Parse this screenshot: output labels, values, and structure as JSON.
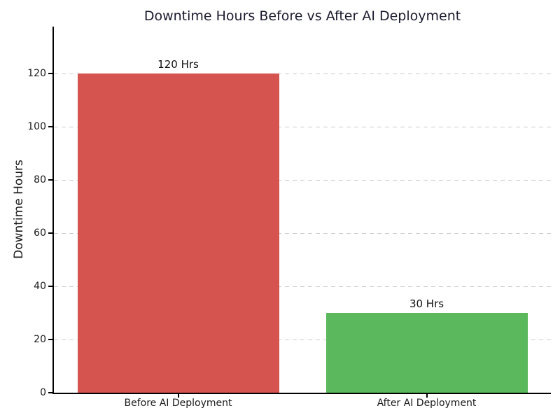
{
  "chart_data": {
    "type": "bar",
    "title": "Downtime Hours Before vs After AI Deployment",
    "xlabel": "",
    "ylabel": "Downtime Hours",
    "categories": [
      "Before AI Deployment",
      "After AI Deployment"
    ],
    "values": [
      120,
      30
    ],
    "bar_labels": [
      "120 Hrs",
      "30 Hrs"
    ],
    "bar_colors": [
      "#d65450",
      "#5cb85c"
    ],
    "yticks": [
      0,
      20,
      40,
      60,
      80,
      100,
      120
    ],
    "ylim": [
      0,
      137.5
    ],
    "grid": "horizontal-dashed",
    "grid_color": "#cccccc",
    "legend": "none",
    "title_color": "#1a1a2e",
    "axis_color": "#000000",
    "background": "#ffffff"
  }
}
